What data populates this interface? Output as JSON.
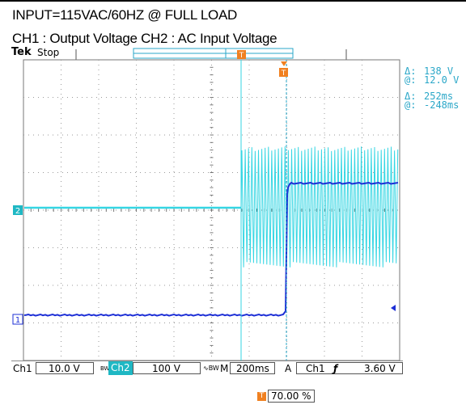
{
  "header": {
    "line1": "INPUT=115VAC/60HZ @ FULL LOAD",
    "line2": "CH1 : Output Voltage CH2 : AC Input Voltage"
  },
  "scope": {
    "brand": "Tek",
    "run_state": "Stop",
    "trigger_marker": "T",
    "ch2_marker": "2",
    "ch1_marker": "1"
  },
  "cursor_readouts": {
    "delta1_label": "Δ:",
    "delta1_value": "138 V",
    "at1_label": "@:",
    "at1_value": "12.0 V",
    "delta2_label": "Δ:",
    "delta2_value": "252ms",
    "at2_label": "@:",
    "at2_value": "-248ms"
  },
  "bottom_bar": {
    "ch1_label": "Ch1",
    "ch1_scale": "10.0 V",
    "ch1_bw": "BW",
    "ch2_label": "Ch2",
    "ch2_scale": "100 V",
    "ch2_coupling": "∿BW",
    "timebase_label": "M",
    "timebase_value": "200ms",
    "acq_label": "A",
    "trig_source": "Ch1",
    "trig_slope": "ƒ",
    "trig_level": "3.60 V"
  },
  "trigger_position": {
    "label": "T",
    "value": "70.00 %"
  },
  "colors": {
    "ch1": "#1d2fd6",
    "ch2": "#35d6e3",
    "grid": "#8a8a8a",
    "trigger": "#f08020"
  }
}
